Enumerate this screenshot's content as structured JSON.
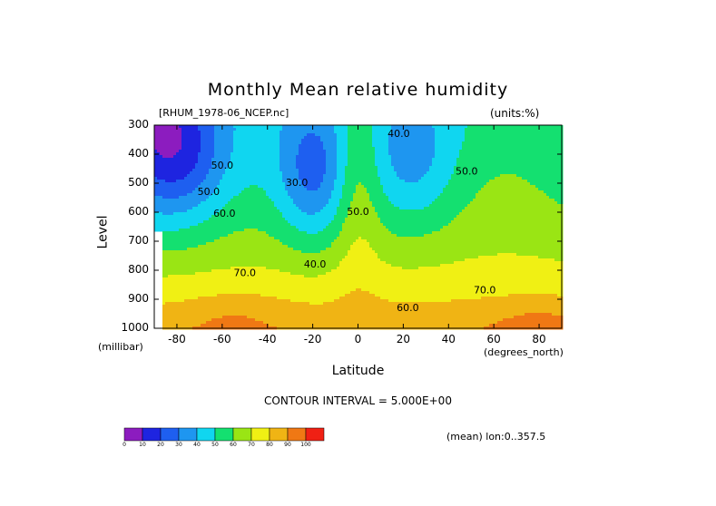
{
  "chart_data": {
    "type": "contour",
    "title": "Monthly Mean relative humidity",
    "subtitle_left": "[RHUM_1978-06_NCEP.nc]",
    "subtitle_right": "(units:%)",
    "xlabel": "Latitude",
    "xunit": "(degrees_north)",
    "ylabel": "Level",
    "yunit": "(millibar)",
    "xlim": [
      -90,
      90
    ],
    "ylim": [
      1000,
      300
    ],
    "y_axis_inverted": true,
    "x_ticks": [
      "-80",
      "-60",
      "-40",
      "-20",
      "0",
      "20",
      "40",
      "60",
      "80"
    ],
    "x_tick_values": [
      -80,
      -60,
      -40,
      -20,
      0,
      20,
      40,
      60,
      80
    ],
    "y_ticks": [
      "300",
      "400",
      "500",
      "600",
      "700",
      "800",
      "900",
      "1000"
    ],
    "y_tick_values": [
      300,
      400,
      500,
      600,
      700,
      800,
      900,
      1000
    ],
    "contour_interval_label": "CONTOUR INTERVAL = 5.000E+00",
    "contour_interval": 5,
    "mean_note": "(mean) lon:0..357.5",
    "contour_labels": [
      {
        "text": "30.0",
        "lat": -27,
        "level": 510
      },
      {
        "text": "40.0",
        "lat": -19,
        "level": 790
      },
      {
        "text": "40.0",
        "lat": 18,
        "level": 340
      },
      {
        "text": "50.0",
        "lat": -60,
        "level": 450
      },
      {
        "text": "50.0",
        "lat": -66,
        "level": 540
      },
      {
        "text": "50.0",
        "lat": 0,
        "level": 610
      },
      {
        "text": "50.0",
        "lat": 48,
        "level": 470
      },
      {
        "text": "60.0",
        "lat": -59,
        "level": 615
      },
      {
        "text": "60.0",
        "lat": 22,
        "level": 940
      },
      {
        "text": "70.0",
        "lat": -50,
        "level": 820
      },
      {
        "text": "70.0",
        "lat": 56,
        "level": 880
      }
    ],
    "field_description_points": [
      {
        "lat": -20,
        "level": 450,
        "value": 25
      },
      {
        "lat": 23,
        "level": 400,
        "value": 38
      },
      {
        "lat": -80,
        "level": 300,
        "value": 5
      },
      {
        "lat": -60,
        "level": 950,
        "value": 85
      },
      {
        "lat": 85,
        "level": 980,
        "value": 95
      },
      {
        "lat": 0,
        "level": 950,
        "value": 80
      }
    ],
    "colorbar": {
      "labels": [
        "0",
        "10",
        "20",
        "30",
        "40",
        "50",
        "60",
        "70",
        "80",
        "90",
        "100"
      ],
      "colors": [
        "#8c1cbf",
        "#1e24e0",
        "#1e5ff0",
        "#1e96f0",
        "#10d6f0",
        "#14e070",
        "#9ae514",
        "#f0f014",
        "#f0b414",
        "#f07814",
        "#f02014"
      ]
    }
  }
}
